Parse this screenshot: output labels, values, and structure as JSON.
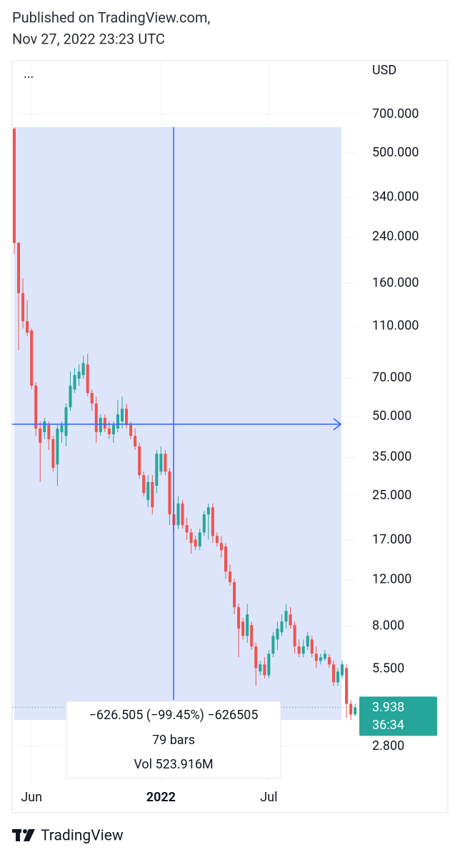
{
  "header": {
    "line1": "Published on TradingView.com,",
    "line2": "Nov 27, 2022 23:23 UTC"
  },
  "chart_data": {
    "type": "candlestick",
    "currency": "USD",
    "menu": "...",
    "log_scale": true,
    "grid": true,
    "up_color": "#26a69a",
    "down_color": "#ef5350",
    "ylim": [
      2.05,
      1120
    ],
    "yticks": [
      {
        "value": 700,
        "label": "700.000"
      },
      {
        "value": 500,
        "label": "500.000"
      },
      {
        "value": 340,
        "label": "340.000"
      },
      {
        "value": 240,
        "label": "240.000"
      },
      {
        "value": 160,
        "label": "160.000"
      },
      {
        "value": 110,
        "label": "110.000"
      },
      {
        "value": 70,
        "label": "70.000"
      },
      {
        "value": 50,
        "label": "50.000"
      },
      {
        "value": 35,
        "label": "35.000"
      },
      {
        "value": 25,
        "label": "25.000"
      },
      {
        "value": 17,
        "label": "17.000"
      },
      {
        "value": 12,
        "label": "12.000"
      },
      {
        "value": 8,
        "label": "8.000"
      },
      {
        "value": 5.5,
        "label": "5.500"
      },
      {
        "value": 2.8,
        "label": "2.800"
      }
    ],
    "categories": [
      null,
      null,
      null,
      null,
      "Jun",
      null,
      null,
      null,
      null,
      null,
      null,
      null,
      null,
      null,
      null,
      null,
      null,
      null,
      null,
      null,
      null,
      null,
      null,
      null,
      null,
      null,
      null,
      null,
      null,
      null,
      null,
      null,
      null,
      null,
      "2022",
      null,
      null,
      null,
      null,
      null,
      null,
      null,
      null,
      null,
      null,
      null,
      null,
      null,
      null,
      null,
      null,
      null,
      null,
      null,
      null,
      null,
      null,
      null,
      null,
      "Jul",
      null,
      null,
      null,
      null,
      null,
      null,
      null,
      null,
      null,
      null,
      null,
      null,
      null,
      null,
      null,
      null,
      null,
      null,
      null,
      null
    ],
    "open": [
      618,
      228,
      147,
      115,
      106,
      65.4,
      45.0,
      43.6,
      46.4,
      41.0,
      32.9,
      43.6,
      42.2,
      54.2,
      63.3,
      69.6,
      71.8,
      78.8,
      61.4,
      56.0,
      43.6,
      49.4,
      45.0,
      42.8,
      45.0,
      47.9,
      53.5,
      46.4,
      42.2,
      38.5,
      29.95,
      24.1,
      28.2,
      27.3,
      30.9,
      36.1,
      30.9,
      21.25,
      19.35,
      23.35,
      19.35,
      18.15,
      17.05,
      16.05,
      18.15,
      21.25,
      22.6,
      17.6,
      16.55,
      16.05,
      12.9,
      11.75,
      9.44,
      8.33,
      7.35,
      8.07,
      6.7,
      5.38,
      5.73,
      5.21,
      6.29,
      7.12,
      7.59,
      8.33,
      8.87,
      8.07,
      6.7,
      6.29,
      6.7,
      7.12,
      6.29,
      5.91,
      6.02,
      6.1,
      5.73,
      4.9,
      5.21,
      5.55,
      4.06,
      3.7
    ],
    "high": [
      626,
      230,
      167,
      138,
      108,
      67.4,
      47.9,
      49.4,
      47.9,
      42.2,
      46.4,
      47.9,
      56.0,
      74.05,
      76.4,
      78.8,
      85.0,
      86.5,
      63.3,
      59.5,
      50.9,
      50.9,
      47.9,
      47.9,
      57.7,
      59.5,
      56.0,
      47.9,
      45.0,
      39.7,
      30.9,
      29.95,
      29.95,
      37.3,
      38.5,
      37.3,
      31.9,
      24.1,
      24.85,
      24.1,
      20.6,
      18.75,
      17.6,
      18.75,
      21.9,
      23.35,
      23.35,
      18.15,
      17.6,
      16.55,
      13.7,
      12.1,
      9.73,
      8.6,
      9.73,
      8.33,
      6.91,
      5.91,
      6.1,
      6.49,
      7.59,
      8.33,
      8.87,
      9.73,
      9.44,
      8.33,
      7.12,
      7.12,
      7.59,
      7.35,
      6.7,
      6.29,
      6.49,
      6.29,
      5.91,
      5.55,
      5.91,
      5.73,
      4.19,
      4.06
    ],
    "low": [
      207,
      89.3,
      108,
      101,
      63.3,
      42.2,
      28.2,
      41.0,
      37.3,
      30.9,
      27.3,
      39.7,
      38.5,
      52.5,
      61.4,
      65.35,
      69.6,
      59.5,
      52.5,
      39.7,
      42.2,
      43.6,
      41.0,
      39.7,
      43.6,
      45.0,
      45.0,
      41.0,
      37.3,
      29.05,
      24.85,
      22.6,
      21.25,
      25.6,
      29.95,
      29.95,
      19.35,
      18.15,
      18.75,
      18.75,
      17.05,
      15.05,
      15.55,
      15.55,
      17.6,
      17.05,
      16.55,
      16.05,
      14.6,
      12.1,
      11.4,
      8.87,
      6.1,
      7.12,
      6.91,
      6.49,
      4.75,
      5.21,
      5.06,
      5.06,
      6.1,
      6.49,
      7.35,
      7.83,
      7.83,
      6.29,
      6.1,
      6.1,
      6.49,
      6.1,
      5.55,
      5.73,
      5.91,
      5.55,
      4.75,
      4.75,
      5.06,
      3.59,
      3.52,
      3.65
    ],
    "close": [
      228,
      147,
      115,
      104,
      65.4,
      45.0,
      39.7,
      47.9,
      41.0,
      31.9,
      45.0,
      46.4,
      54.2,
      65.35,
      71.8,
      74.05,
      79.8,
      61.4,
      56.0,
      43.6,
      49.4,
      45.0,
      42.8,
      46.4,
      50.9,
      53.5,
      46.4,
      42.2,
      38.5,
      29.95,
      25.6,
      28.2,
      22.6,
      36.1,
      36.1,
      30.9,
      21.25,
      19.35,
      23.35,
      19.35,
      18.15,
      16.55,
      16.05,
      18.15,
      21.25,
      22.6,
      17.6,
      16.55,
      15.55,
      12.9,
      11.75,
      9.44,
      7.83,
      7.35,
      8.87,
      6.7,
      5.55,
      5.73,
      5.21,
      6.29,
      7.35,
      7.83,
      8.33,
      9.15,
      8.07,
      6.7,
      6.29,
      6.7,
      7.35,
      6.29,
      5.91,
      6.1,
      6.29,
      5.73,
      4.9,
      5.38,
      5.73,
      4.06,
      3.7,
      3.938
    ],
    "last_price": {
      "value": 3.938,
      "label": "3.938"
    },
    "countdown": "36:34",
    "measurement": {
      "change": "−626.505 (−99.45%) −626505",
      "bars": "79 bars",
      "volume": "Vol 523.916M"
    }
  },
  "footer": {
    "brand": "TradingView"
  }
}
